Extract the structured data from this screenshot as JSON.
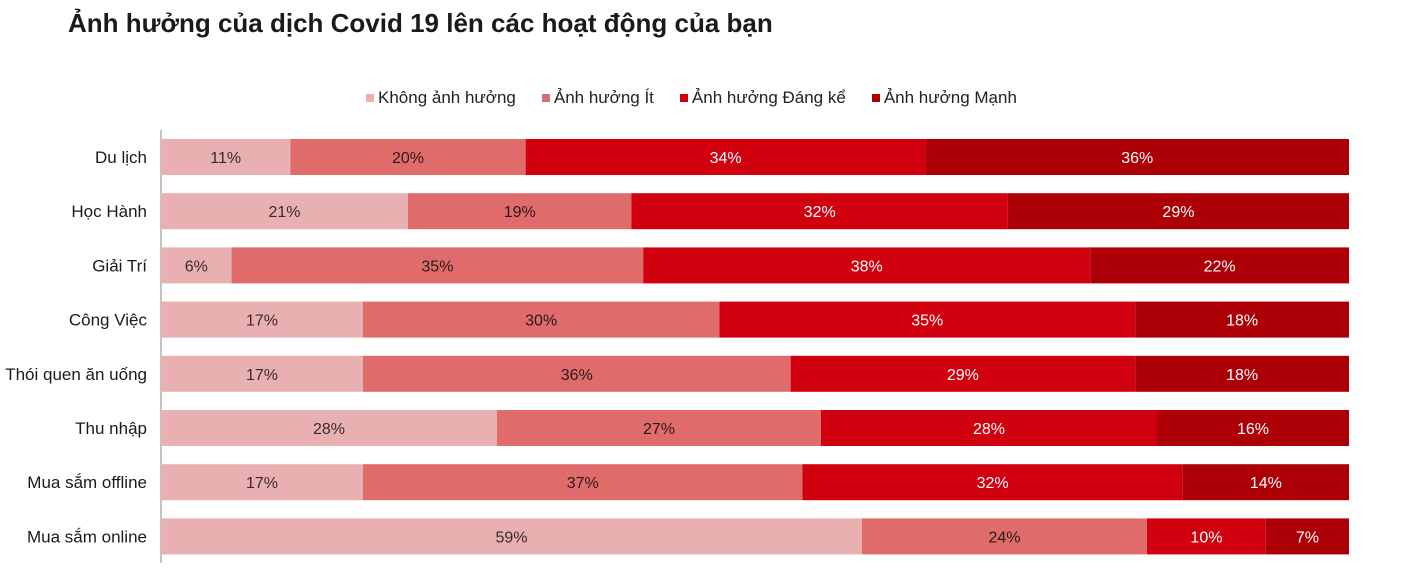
{
  "title": "Ảnh hưởng của dịch Covid 19 lên các hoạt động của bạn",
  "chart_data": {
    "type": "bar",
    "orientation": "horizontal",
    "stacked": "percent",
    "title": "Ảnh hưởng của dịch Covid 19 lên các hoạt động của bạn",
    "legend_position": "top",
    "categories": [
      "Du lịch",
      "Học Hành",
      "Giải Trí",
      "Công Việc",
      "Thói quen ăn uống",
      "Thu nhập",
      "Mua sắm offline",
      "Mua sắm online"
    ],
    "series": [
      {
        "name": "Không ảnh hưởng",
        "color": "#e8b0b0",
        "label_color": "#3a2a2a",
        "values": [
          11,
          21,
          6,
          17,
          17,
          28,
          17,
          59
        ]
      },
      {
        "name": "Ảnh hưởng Ít",
        "color": "#df6b6b",
        "label_color": "#2a1a1a",
        "values": [
          20,
          19,
          35,
          30,
          36,
          27,
          37,
          24
        ]
      },
      {
        "name": "Ảnh hưởng Đáng kể",
        "color": "#d0000f",
        "label_color": "#ffffff",
        "values": [
          34,
          32,
          38,
          35,
          29,
          28,
          32,
          10
        ]
      },
      {
        "name": "Ảnh hưởng Mạnh",
        "color": "#ad0006",
        "label_color": "#ffffff",
        "values": [
          36,
          29,
          22,
          18,
          18,
          16,
          14,
          7
        ]
      }
    ],
    "labels": [
      [
        "11%",
        "20%",
        "34%",
        "36%"
      ],
      [
        "21%",
        "19%",
        "32%",
        "29%"
      ],
      [
        "6%",
        "35%",
        "38%",
        "22%"
      ],
      [
        "17%",
        "30%",
        "35%",
        "18%"
      ],
      [
        "17%",
        "36%",
        "29%",
        "18%"
      ],
      [
        "28%",
        "27%",
        "28%",
        "16%"
      ],
      [
        "17%",
        "37%",
        "32%",
        "14%"
      ],
      [
        "59%",
        "24%",
        "10%",
        "7%"
      ]
    ]
  }
}
